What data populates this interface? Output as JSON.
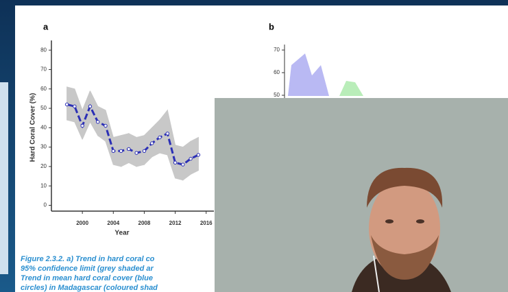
{
  "slide": {
    "panel_a_label": "a",
    "panel_b_label": "b",
    "panel_b_yticks": [
      70,
      60,
      50
    ],
    "caption": [
      "Figure 2.3.2.  a) Trend in hard coral co",
      "95% confidence limit (grey shaded ar",
      "Trend in mean hard coral cover (blue",
      "circles) in Madagascar (coloured shad"
    ]
  },
  "chart_data": {
    "type": "line",
    "ylabel": "Hard Coral Cover (%)",
    "xlabel": "Year",
    "x": [
      1998,
      1999,
      2000,
      2001,
      2002,
      2003,
      2004,
      2005,
      2006,
      2007,
      2008,
      2009,
      2010,
      2011,
      2012,
      2013,
      2014,
      2015
    ],
    "series": [
      {
        "color": "#2b2fb5",
        "values": [
          52,
          51,
          41,
          51,
          43,
          41,
          28,
          28,
          29,
          27,
          28,
          32,
          35,
          37,
          22,
          21,
          24,
          26
        ]
      }
    ],
    "band": {
      "color": "#c8c8c8",
      "lower": [
        44,
        43,
        34,
        43,
        36,
        33,
        21,
        20,
        22,
        20,
        21,
        25,
        27,
        26,
        14,
        13,
        16,
        18
      ],
      "upper": [
        61,
        60,
        49,
        59,
        51,
        49,
        35,
        36,
        37,
        35,
        36,
        40,
        44,
        49,
        31,
        30,
        33,
        35
      ]
    },
    "xlim": [
      1996,
      2017
    ],
    "ylim": [
      -3,
      85
    ],
    "xticks": [
      2000,
      2004,
      2008,
      2012,
      2016
    ],
    "yticks": [
      0,
      10,
      20,
      30,
      40,
      50,
      60,
      70,
      80
    ]
  }
}
